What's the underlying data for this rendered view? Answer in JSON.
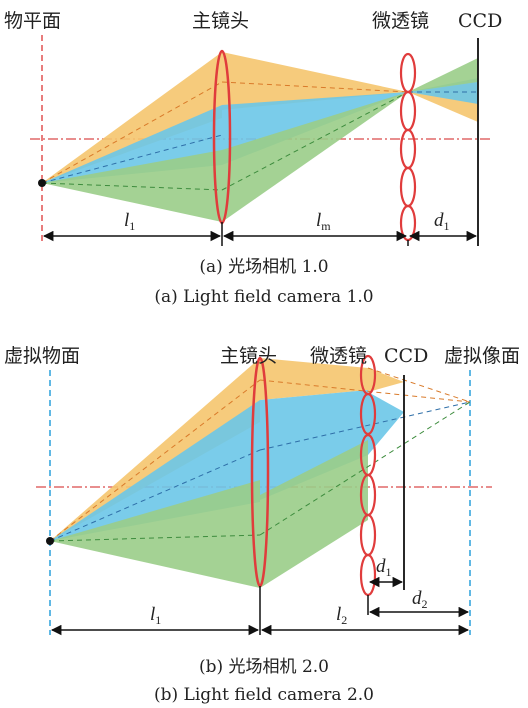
{
  "diagram_a": {
    "labels": {
      "object_plane": "物平面",
      "main_lens": "主镜头",
      "microlens": "微透镜",
      "ccd": "CCD"
    },
    "distances": {
      "l1": {
        "main": "l",
        "sub": "1"
      },
      "lm": {
        "main": "l",
        "sub": "m"
      },
      "d1": {
        "main": "d",
        "sub": "1"
      }
    },
    "caption_cn": "(a) 光场相机 1.0",
    "caption_en": "(a) Light field camera 1.0"
  },
  "diagram_b": {
    "labels": {
      "virtual_object_plane": "虚拟物面",
      "main_lens": "主镜头",
      "microlens": "微透镜",
      "ccd": "CCD",
      "virtual_image_plane": "虚拟像面"
    },
    "distances": {
      "l1": {
        "main": "l",
        "sub": "1"
      },
      "l2": {
        "main": "l",
        "sub": "2"
      },
      "d1": {
        "main": "d",
        "sub": "1"
      },
      "d2": {
        "main": "d",
        "sub": "2"
      }
    },
    "caption_cn": "(b) 光场相机 2.0",
    "caption_en": "(b) Light field camera 2.0"
  },
  "colors": {
    "orange": "#F5C56E",
    "blue": "#6CC7E8",
    "green": "#9ACD88",
    "lens_red": "#E03C3C",
    "axis_red": "#D94A4A",
    "plane_blue": "#38A6DE"
  }
}
